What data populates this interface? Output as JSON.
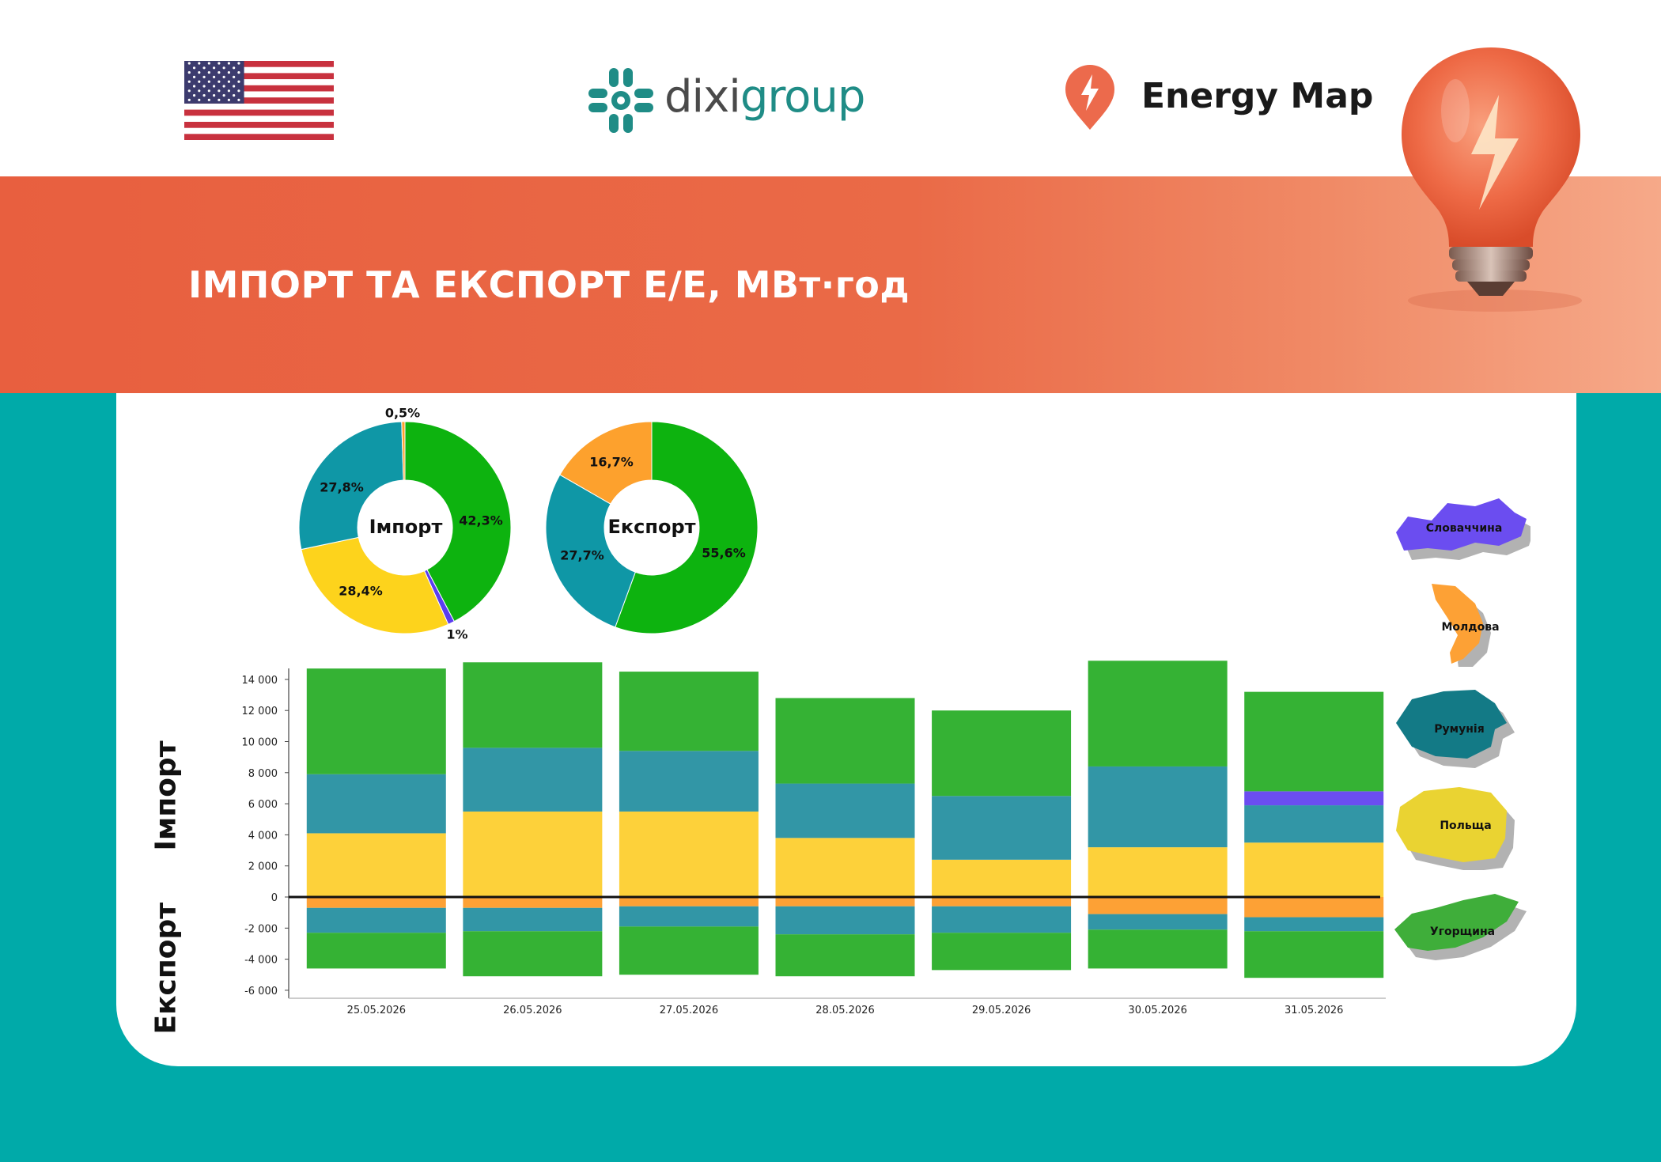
{
  "header": {
    "brand_dixi_part1": "dixi",
    "brand_dixi_part2": "group",
    "brand_energymap": "Energy Map",
    "title": "ІМПОРТ ТА ЕКСПОРТ Е/Е, МВт·год"
  },
  "colors": {
    "banner": "#e85f3f",
    "teal_bg": "#00aaa9",
    "green": "#35b234",
    "teal": "#3296a6",
    "yellow": "#fdd13a",
    "orange": "#fda135",
    "purple": "#6b4df0"
  },
  "donuts": [
    {
      "label": "Імпорт",
      "slices": [
        {
          "country": "Угорщина",
          "value": 42.3,
          "label": "42,3%",
          "color": "#0db30f"
        },
        {
          "country": "Словаччина",
          "value": 1.0,
          "label": "1%",
          "color": "#5b3df0"
        },
        {
          "country": "Польща",
          "value": 28.4,
          "label": "28,4%",
          "color": "#fdd31c"
        },
        {
          "country": "Румунія",
          "value": 27.8,
          "label": "27,8%",
          "color": "#0f97a6"
        },
        {
          "country": "Молдова",
          "value": 0.5,
          "label": "0,5%",
          "color": "#fda12d"
        }
      ]
    },
    {
      "label": "Експорт",
      "slices": [
        {
          "country": "Угорщина",
          "value": 55.6,
          "label": "55,6%",
          "color": "#0db30f"
        },
        {
          "country": "Румунія",
          "value": 27.7,
          "label": "27,7%",
          "color": "#0f97a6"
        },
        {
          "country": "Молдова",
          "value": 16.7,
          "label": "16,7%",
          "color": "#fda12d"
        }
      ]
    }
  ],
  "axis_side_labels": {
    "import": "Імпорт",
    "export": "Експорт"
  },
  "legend": [
    {
      "name": "Словаччина",
      "color": "#6b4df0",
      "icon": "slovakia-map-icon"
    },
    {
      "name": "Молдова",
      "color": "#fda135",
      "icon": "moldova-map-icon"
    },
    {
      "name": "Румунія",
      "color": "#137a86",
      "icon": "romania-map-icon"
    },
    {
      "name": "Польща",
      "color": "#ead332",
      "icon": "poland-map-icon"
    },
    {
      "name": "Угорщина",
      "color": "#3fae3a",
      "icon": "hungary-map-icon"
    }
  ],
  "chart_data": {
    "type": "bar",
    "stacked": true,
    "categories": [
      "25.05.2026",
      "26.05.2026",
      "27.05.2026",
      "28.05.2026",
      "29.05.2026",
      "30.05.2026",
      "31.05.2026"
    ],
    "ylim": [
      -6000,
      15000
    ],
    "yticks": [
      -6000,
      -4000,
      -2000,
      0,
      2000,
      4000,
      6000,
      8000,
      10000,
      12000,
      14000
    ],
    "ytick_labels": [
      "-6 000",
      "-4 000",
      "-2 000",
      "0",
      "2 000",
      "4 000",
      "6 000",
      "8 000",
      "10 000",
      "12 000",
      "14 000"
    ],
    "series": [
      {
        "name": "Польща",
        "color": "#fdd13a",
        "values": [
          4100,
          5500,
          5500,
          3800,
          2400,
          3200,
          3500
        ]
      },
      {
        "name": "Румунія",
        "color": "#3296a6",
        "values": [
          3800,
          4100,
          3900,
          3500,
          4100,
          5200,
          2400
        ]
      },
      {
        "name": "Словаччина",
        "color": "#6b4df0",
        "values": [
          0,
          0,
          0,
          0,
          0,
          0,
          900
        ]
      },
      {
        "name": "Угорщина",
        "color": "#35b234",
        "values": [
          6800,
          5500,
          5100,
          5500,
          5500,
          6800,
          6400
        ]
      },
      {
        "name": "Молдова",
        "color": "#fda135",
        "values": [
          -700,
          -700,
          -600,
          -600,
          -600,
          -1100,
          -1300
        ]
      },
      {
        "name": "Румунія (експорт)",
        "color": "#3296a6",
        "values": [
          -1600,
          -1500,
          -1300,
          -1800,
          -1700,
          -1000,
          -900
        ]
      },
      {
        "name": "Угорщина (експорт)",
        "color": "#35b234",
        "values": [
          -2300,
          -2900,
          -3100,
          -2700,
          -2400,
          -2500,
          -3000
        ]
      }
    ]
  }
}
